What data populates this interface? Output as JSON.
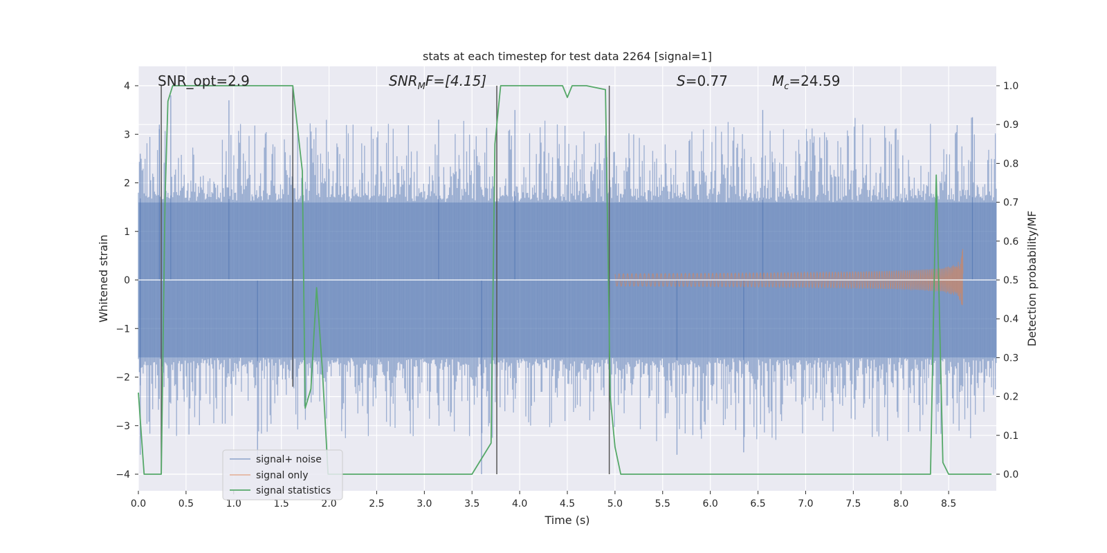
{
  "chart_data": {
    "type": "line",
    "title": "stats at each timestep for test data 2264 [signal=1]",
    "xlabel": "Time (s)",
    "ylabel": "Whitened strain",
    "ylabel_right": "Detection probability/MF",
    "xlim": [
      0,
      9.0
    ],
    "ylim": [
      -4.4,
      4.4
    ],
    "ylim_right": [
      -0.05,
      1.05
    ],
    "x_ticks": [
      0.0,
      0.5,
      1.0,
      1.5,
      2.0,
      2.5,
      3.0,
      3.5,
      4.0,
      4.5,
      5.0,
      5.5,
      6.0,
      6.5,
      7.0,
      7.5,
      8.0,
      8.5
    ],
    "x_tick_labels": [
      "0.0",
      "0.5",
      "1.0",
      "1.5",
      "2.0",
      "2.5",
      "3.0",
      "3.5",
      "4.0",
      "4.5",
      "5.0",
      "5.5",
      "6.0",
      "6.5",
      "7.0",
      "7.5",
      "8.0",
      "8.5"
    ],
    "y_ticks": [
      4,
      3,
      2,
      1,
      0,
      -1,
      -2,
      -3,
      -4
    ],
    "y_tick_labels": [
      "4",
      "3",
      "2",
      "1",
      "0",
      "−1",
      "−2",
      "−3",
      "−4"
    ],
    "y2_ticks": [
      1.0,
      0.9,
      0.8,
      0.7,
      0.6,
      0.5,
      0.4,
      0.3,
      0.2,
      0.1,
      0.0
    ],
    "y2_tick_labels": [
      "1.0",
      "0.9",
      "0.8",
      "0.7",
      "0.6",
      "0.5",
      "0.4",
      "0.3",
      "0.2",
      "0.1",
      "0.0"
    ],
    "grid": true,
    "legend_position": "lower-left",
    "series": [
      {
        "name": "signal+ noise",
        "color": "#4c72b0",
        "axis": "left",
        "kind": "noise",
        "x_range": [
          0,
          9.0
        ],
        "typical_amplitude": 1.6,
        "peak_values": [
          {
            "x": 0.02,
            "y": 2.6
          },
          {
            "x": 0.02,
            "y": -3.6
          },
          {
            "x": 0.22,
            "y": 3.2
          },
          {
            "x": 0.34,
            "y": 3.8
          },
          {
            "x": 0.95,
            "y": 3.7
          },
          {
            "x": 1.25,
            "y": -3.7
          },
          {
            "x": 3.15,
            "y": 3.3
          },
          {
            "x": 3.6,
            "y": -4.0
          },
          {
            "x": 3.95,
            "y": 3.5
          },
          {
            "x": 5.65,
            "y": -3.6
          },
          {
            "x": 6.35,
            "y": -3.55
          },
          {
            "x": 6.55,
            "y": 3.5
          },
          {
            "x": 8.75,
            "y": 3.35
          }
        ]
      },
      {
        "name": "signal only",
        "color": "#dd8452",
        "axis": "left",
        "kind": "chirp",
        "x_range": [
          5.0,
          8.65
        ],
        "peak_amplitude": 0.7
      },
      {
        "name": "signal statistics",
        "color": "#55a868",
        "axis": "right",
        "kind": "line",
        "x": [
          0.0,
          0.06,
          0.24,
          0.28,
          0.31,
          0.36,
          0.5,
          1.0,
          1.55,
          1.62,
          1.72,
          1.75,
          1.81,
          1.87,
          1.93,
          1.99,
          2.05,
          2.2,
          3.0,
          3.5,
          3.7,
          3.74,
          3.8,
          4.0,
          4.45,
          4.5,
          4.55,
          4.6,
          4.7,
          4.9,
          4.95,
          5.0,
          5.06,
          5.5,
          7.0,
          8.31,
          8.37,
          8.44,
          8.5,
          8.95
        ],
        "y": [
          0.21,
          0.0,
          0.0,
          0.71,
          0.96,
          1.0,
          1.0,
          1.0,
          1.0,
          1.0,
          0.78,
          0.17,
          0.22,
          0.48,
          0.27,
          0.0,
          0.0,
          0.0,
          0.0,
          0.0,
          0.08,
          0.85,
          1.0,
          1.0,
          1.0,
          0.97,
          1.0,
          1.0,
          1.0,
          0.99,
          0.2,
          0.07,
          0.0,
          0.0,
          0.0,
          0.0,
          0.77,
          0.03,
          0.0,
          0.0
        ]
      }
    ],
    "vertical_markers": {
      "color": "#555555",
      "x": [
        0.24,
        1.62,
        3.76,
        4.94
      ],
      "y_top": [
        4.0,
        4.0,
        4.0,
        4.0
      ],
      "y_bottom": [
        -4.0,
        -2.2,
        -4.0,
        -4.0
      ]
    },
    "annotations": [
      {
        "text": "SNR_opt=2.9",
        "x": 0.2,
        "y": 4.05
      },
      {
        "text": "SNR_MF=[4.15]",
        "x": 2.6,
        "y": 4.05
      },
      {
        "text": "S=0.77",
        "x": 5.6,
        "y": 4.05
      },
      {
        "text": "M_c=24.59",
        "x": 6.6,
        "y": 4.05
      }
    ],
    "annotation_display": {
      "snr_mf_base": "SNR",
      "snr_mf_sub": "M",
      "snr_mf_tail": "F=[4.15]",
      "s_base": "S",
      "s_tail": "=0.77",
      "mc_base": "M",
      "mc_sub": "c",
      "mc_tail": "=24.59"
    }
  }
}
